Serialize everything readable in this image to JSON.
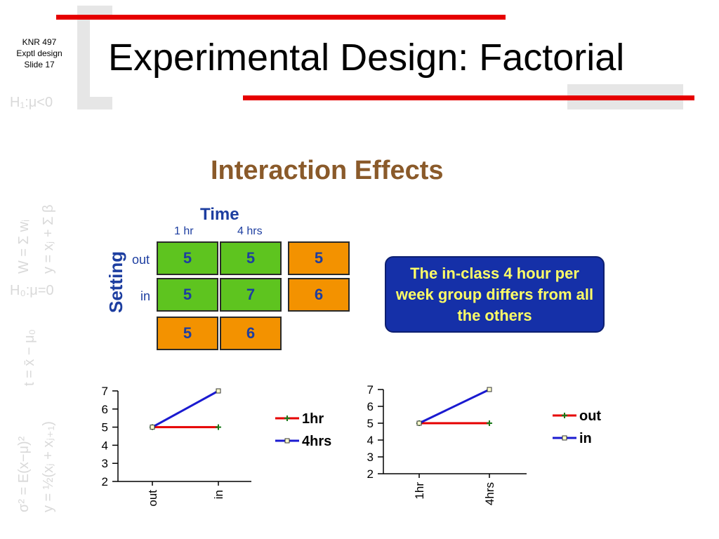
{
  "slide": {
    "course": "KNR 497",
    "topic": "Exptl design",
    "number": "Slide 17",
    "title": "Experimental Design: Factorial",
    "subtitle": "Interaction Effects"
  },
  "table": {
    "factor_top": "Time",
    "factor_side": "Setting",
    "col_headers": [
      "1 hr",
      "4 hrs"
    ],
    "row_headers": [
      "out",
      "in"
    ],
    "cells": [
      [
        "5",
        "5"
      ],
      [
        "5",
        "7"
      ]
    ],
    "row_means": [
      "5",
      "6"
    ],
    "col_means": [
      "5",
      "6"
    ]
  },
  "callout": "The in-class 4 hour per week group differs from all the others",
  "colors": {
    "red": "#e60000",
    "blue": "#1a1ad0",
    "green": "#5ec41f",
    "orange": "#f39200",
    "navy": "#1530a8"
  },
  "chart_data": [
    {
      "type": "line",
      "x": [
        "out",
        "in"
      ],
      "ylim": [
        2,
        7
      ],
      "yticks": [
        "2",
        "3",
        "4",
        "5",
        "6",
        "7"
      ],
      "series": [
        {
          "name": "1hr",
          "values": [
            5,
            5
          ],
          "color": "#e60000"
        },
        {
          "name": "4hrs",
          "values": [
            5,
            7
          ],
          "color": "#1a1ad0"
        }
      ]
    },
    {
      "type": "line",
      "x": [
        "1hr",
        "4hrs"
      ],
      "ylim": [
        2,
        7
      ],
      "yticks": [
        "2",
        "3",
        "4",
        "5",
        "6",
        "7"
      ],
      "series": [
        {
          "name": "out",
          "values": [
            5,
            5
          ],
          "color": "#e60000"
        },
        {
          "name": "in",
          "values": [
            5,
            7
          ],
          "color": "#1a1ad0"
        }
      ]
    }
  ]
}
